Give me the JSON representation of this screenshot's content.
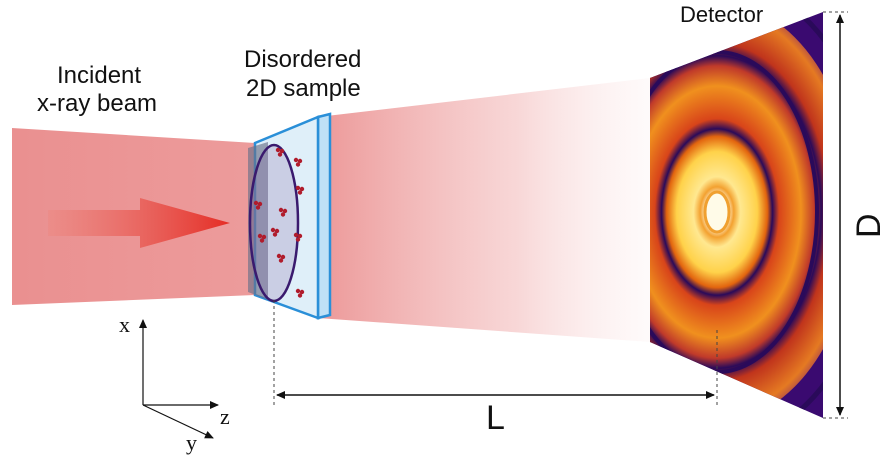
{
  "labels": {
    "incident_line1": "Incident",
    "incident_line2": "x-ray beam",
    "sample_line1": "Disordered",
    "sample_line2": "2D sample",
    "detector": "Detector",
    "distance": "L",
    "detector_size": "D",
    "axis_x": "x",
    "axis_y": "y",
    "axis_z": "z"
  },
  "colors": {
    "beam": "#e98a8a",
    "arrow": "#e8302a",
    "sample_frame": "#2a8fd8",
    "sample_fill": "#d9ecf8",
    "ellipse": "#3a1a6e",
    "particles": "#b01c2c",
    "detector_dark": "#2a0a5a",
    "detector_mid": "#d8441a",
    "detector_bright": "#ffe06a"
  }
}
